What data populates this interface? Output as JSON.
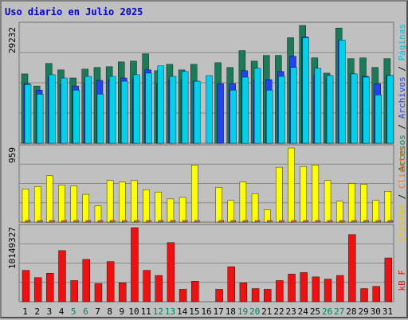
{
  "title": "Uso diario en Julio 2025",
  "colors": {
    "visitas": "#1a7a5a",
    "paginas": "#00d0e8",
    "solicitudes": "#00c0ff",
    "archivos": "#2244ee",
    "bytes": "#ee1111",
    "accesos_bar": "#ffff00",
    "clientes": "#e87820",
    "panel_bg": "#c0c0c0",
    "grid": "#8a8a8a",
    "weekend_day": "#008060"
  },
  "side_labels": {
    "top_axis": "29232",
    "mid_axis": "959",
    "bot_axis": "10149327",
    "legend_top": [
      {
        "text": "Accesos",
        "color": "#1a7a5a"
      },
      {
        "text": " / ",
        "color": "#000000"
      },
      {
        "text": "Archivos",
        "color": "#2244ee"
      },
      {
        "text": " / ",
        "color": "#000000"
      },
      {
        "text": "Páginas",
        "color": "#00c0e0"
      }
    ],
    "legend_mid": [
      {
        "text": "Visitas",
        "color": "#e8c800"
      },
      {
        "text": " / ",
        "color": "#000000"
      },
      {
        "text": "Clientes",
        "color": "#e87820"
      }
    ],
    "legend_bot": [
      {
        "text": "kB F",
        "color": "#ee1111"
      }
    ]
  },
  "chart_data": {
    "type": "bar",
    "title": "Uso diario en Julio 2025",
    "categories": [
      "1",
      "2",
      "3",
      "4",
      "5",
      "6",
      "7",
      "8",
      "9",
      "10",
      "11",
      "12",
      "13",
      "14",
      "15",
      "16",
      "17",
      "18",
      "19",
      "20",
      "21",
      "22",
      "23",
      "24",
      "25",
      "26",
      "27",
      "28",
      "29",
      "30",
      "31"
    ],
    "weekend_days": [
      "5",
      "6",
      "12",
      "13",
      "19",
      "20",
      "26",
      "27"
    ],
    "panels": [
      {
        "name": "top",
        "ylim": [
          0,
          29232
        ],
        "series": [
          {
            "name": "Accesos",
            "values": [
              17200,
              14200,
              19800,
              18200,
              16200,
              18400,
              18800,
              19000,
              20200,
              20400,
              22200,
              18000,
              19600,
              18200,
              19600,
              0,
              20000,
              18800,
              23000,
              20400,
              21800,
              21800,
              26200,
              29232,
              21200,
              17400,
              28600,
              21000,
              21200,
              18800,
              21000
            ]
          },
          {
            "name": "Archivos",
            "values": [
              14800,
              13200,
              16400,
              14600,
              14200,
              15000,
              15600,
              15800,
              16200,
              16000,
              18200,
              15000,
              15800,
              15800,
              15400,
              0,
              14800,
              14800,
              18000,
              15600,
              15800,
              17800,
              21600,
              26400,
              17000,
              16000,
              25400,
              17200,
              16600,
              14800,
              16800
            ]
          },
          {
            "name": "Páginas",
            "values": [
              14600,
              12200,
              17000,
              16200,
              13200,
              16600,
              12200,
              16600,
              15400,
              17000,
              17400,
              19200,
              16600,
              17800,
              15400,
              16800,
              0,
              13200,
              16400,
              18600,
              13200,
              16600,
              18800,
              26200,
              18600,
              16800,
              25600,
              17200,
              16400,
              12000,
              16800
            ]
          }
        ]
      },
      {
        "name": "middle",
        "ylim": [
          0,
          959
        ],
        "series": [
          {
            "name": "Visitas",
            "values": [
              430,
              460,
              600,
              480,
              470,
              360,
              210,
              540,
              520,
              540,
              420,
              390,
              300,
              320,
              740,
              0,
              450,
              280,
              520,
              370,
              160,
              710,
              959,
              720,
              740,
              540,
              270,
              500,
              490,
              280,
              400
            ]
          },
          {
            "name": "Clientes",
            "values": [
              15,
              15,
              15,
              15,
              15,
              15,
              15,
              15,
              15,
              15,
              15,
              15,
              15,
              15,
              15,
              0,
              15,
              15,
              15,
              15,
              15,
              15,
              15,
              15,
              15,
              15,
              15,
              15,
              15,
              15,
              15
            ]
          }
        ]
      },
      {
        "name": "bottom",
        "ylim": [
          0,
          10149327
        ],
        "series": [
          {
            "name": "kB F",
            "values": [
              4300000,
              3300000,
              3900000,
              7000000,
              2900000,
              5800000,
              2500000,
              5500000,
              2600000,
              10149327,
              4300000,
              3600000,
              8100000,
              1700000,
              2800000,
              0,
              1700000,
              4800000,
              2600000,
              1800000,
              1700000,
              2900000,
              3800000,
              4000000,
              3400000,
              3100000,
              3600000,
              9200000,
              1800000,
              2100000,
              6000000
            ]
          }
        ]
      }
    ]
  }
}
